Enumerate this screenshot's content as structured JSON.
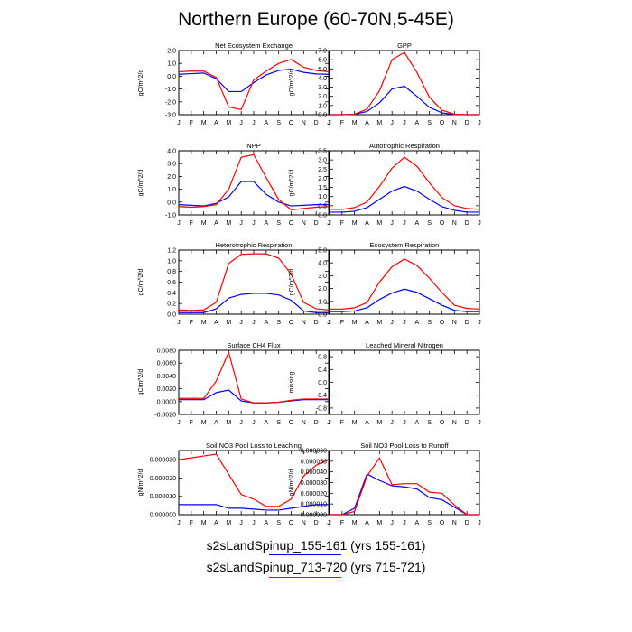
{
  "title": "Northern Europe (60-70N,5-45E)",
  "colors": {
    "run1": "#0000ff",
    "run2": "#ff0000"
  },
  "legend": [
    {
      "label": "s2sLandSpinup_155-161 (yrs 155-161)",
      "color": "#0000ff"
    },
    {
      "label": "s2sLandSpinup_713-720 (yrs 715-721)",
      "color": "#ff0000"
    }
  ],
  "months": [
    "J",
    "F",
    "M",
    "A",
    "M",
    "J",
    "J",
    "A",
    "S",
    "O",
    "N",
    "D",
    "J"
  ],
  "chart_data": [
    {
      "type": "line",
      "title": "Net Ecosystem Exchange",
      "ylabel": "gC/m^2/d",
      "ylim": [
        -3.0,
        2.0
      ],
      "yticks": [
        "-3.0",
        "-2.0",
        "-1.0",
        "0.0",
        "1.0",
        "2.0"
      ],
      "series": [
        {
          "color": "#0000ff",
          "values": [
            0.15,
            0.2,
            0.25,
            -0.2,
            -1.2,
            -1.2,
            -0.5,
            0.1,
            0.45,
            0.55,
            0.3,
            0.18,
            0.15
          ]
        },
        {
          "color": "#ff0000",
          "values": [
            0.35,
            0.4,
            0.4,
            -0.1,
            -2.4,
            -2.6,
            -0.3,
            0.4,
            1.0,
            1.3,
            0.7,
            0.45,
            0.35
          ]
        }
      ]
    },
    {
      "type": "line",
      "title": "GPP",
      "ylabel": "gC/m^2/d",
      "ylim": [
        0.0,
        7.0
      ],
      "yticks": [
        "0.0",
        "1.0",
        "2.0",
        "3.0",
        "4.0",
        "5.0",
        "6.0",
        "7.0"
      ],
      "series": [
        {
          "color": "#0000ff",
          "values": [
            0.0,
            0.0,
            0.05,
            0.35,
            1.3,
            2.8,
            3.1,
            2.0,
            0.8,
            0.2,
            0.02,
            0.0,
            0.0
          ]
        },
        {
          "color": "#ff0000",
          "values": [
            0.0,
            0.0,
            0.05,
            0.6,
            2.6,
            6.0,
            6.8,
            4.6,
            1.9,
            0.5,
            0.05,
            0.0,
            0.0
          ]
        }
      ]
    },
    {
      "type": "line",
      "title": "NPP",
      "ylabel": "gC/m^2/d",
      "ylim": [
        -1.0,
        4.0
      ],
      "yticks": [
        "-1.0",
        "0.0",
        "1.0",
        "2.0",
        "3.0",
        "4.0"
      ],
      "series": [
        {
          "color": "#0000ff",
          "values": [
            -0.2,
            -0.25,
            -0.3,
            -0.1,
            0.4,
            1.6,
            1.6,
            0.6,
            0.0,
            -0.3,
            -0.25,
            -0.2,
            -0.2
          ]
        },
        {
          "color": "#ff0000",
          "values": [
            -0.35,
            -0.4,
            -0.35,
            -0.2,
            1.0,
            3.5,
            3.7,
            1.9,
            0.2,
            -0.6,
            -0.5,
            -0.4,
            -0.35
          ]
        }
      ]
    },
    {
      "type": "line",
      "title": "Autotrophic Respiration",
      "ylabel": "gC/m^2/d",
      "ylim": [
        0.0,
        3.5
      ],
      "yticks": [
        "0.0",
        "0.5",
        "1.0",
        "1.5",
        "2.0",
        "2.5",
        "3.0",
        "3.5"
      ],
      "series": [
        {
          "color": "#0000ff",
          "values": [
            0.15,
            0.15,
            0.2,
            0.4,
            0.85,
            1.3,
            1.55,
            1.3,
            0.85,
            0.45,
            0.25,
            0.15,
            0.15
          ]
        },
        {
          "color": "#ff0000",
          "values": [
            0.3,
            0.3,
            0.4,
            0.7,
            1.55,
            2.55,
            3.15,
            2.65,
            1.75,
            0.95,
            0.5,
            0.35,
            0.3
          ]
        }
      ]
    },
    {
      "type": "line",
      "title": "Heterotrophic Respiration",
      "ylabel": "gC/m^2/d",
      "ylim": [
        0.0,
        1.2
      ],
      "yticks": [
        "0.0",
        "0.2",
        "0.4",
        "0.6",
        "0.8",
        "1.0",
        "1.2"
      ],
      "series": [
        {
          "color": "#0000ff",
          "values": [
            0.03,
            0.03,
            0.03,
            0.1,
            0.3,
            0.37,
            0.39,
            0.39,
            0.36,
            0.26,
            0.06,
            0.03,
            0.03
          ]
        },
        {
          "color": "#ff0000",
          "values": [
            0.08,
            0.07,
            0.08,
            0.22,
            0.95,
            1.12,
            1.13,
            1.13,
            1.05,
            0.75,
            0.22,
            0.1,
            0.08
          ]
        }
      ]
    },
    {
      "type": "line",
      "title": "Ecosystem Respiration",
      "ylabel": "gC/m^2/d",
      "ylim": [
        0.0,
        5.0
      ],
      "yticks": [
        "0.0",
        "1.0",
        "2.0",
        "3.0",
        "4.0",
        "5.0"
      ],
      "series": [
        {
          "color": "#0000ff",
          "values": [
            0.2,
            0.2,
            0.25,
            0.5,
            1.15,
            1.65,
            1.95,
            1.7,
            1.2,
            0.7,
            0.3,
            0.2,
            0.2
          ]
        },
        {
          "color": "#ff0000",
          "values": [
            0.4,
            0.4,
            0.5,
            0.9,
            2.5,
            3.7,
            4.3,
            3.8,
            2.8,
            1.7,
            0.7,
            0.45,
            0.4
          ]
        }
      ]
    },
    {
      "type": "line",
      "title": "Surface CH4 Flux",
      "ylabel": "gC/m^2/d",
      "ylim": [
        -0.002,
        0.008
      ],
      "yticks": [
        "-0.0020",
        "0.0000",
        "0.0020",
        "0.0040",
        "0.0060",
        "0.0080"
      ],
      "series": [
        {
          "color": "#0000ff",
          "values": [
            0.0003,
            0.0003,
            0.0003,
            0.0014,
            0.0018,
            0.0001,
            -0.0002,
            -0.0002,
            -0.0001,
            0.0001,
            0.0003,
            0.0003,
            0.0003
          ]
        },
        {
          "color": "#ff0000",
          "values": [
            0.0005,
            0.0005,
            0.0005,
            0.0032,
            0.0077,
            0.0004,
            -0.0002,
            -0.0002,
            -0.0001,
            0.0002,
            0.0004,
            0.0004,
            0.0004
          ]
        }
      ]
    },
    {
      "type": "line",
      "title": "Leached Mineral Nitrogen",
      "ylabel": "missing",
      "ylim": [
        -1.0,
        1.0
      ],
      "yticks": [
        "-0.8",
        "-0.4",
        "0.0",
        "0.4",
        "0.8"
      ],
      "ytick_values": [
        -0.8,
        -0.4,
        0.0,
        0.4,
        0.8
      ],
      "series": []
    },
    {
      "type": "line",
      "title": "Soil NO3 Pool Loss to Leaching",
      "ylabel": "gN/m^2/d",
      "ylim": [
        0.0,
        3.5e-05
      ],
      "yticks": [
        "0.000000",
        "0.000010",
        "0.000020",
        "0.000030"
      ],
      "series": [
        {
          "color": "#0000ff",
          "values": [
            5.5e-06,
            5.5e-06,
            5.5e-06,
            5.5e-06,
            3.5e-06,
            3.5e-06,
            3e-06,
            2.5e-06,
            2.5e-06,
            3.5e-06,
            4.5e-06,
            5.5e-06,
            5.5e-06
          ]
        },
        {
          "color": "#ff0000",
          "values": [
            3e-05,
            3.1e-05,
            3.2e-05,
            3.3e-05,
            2.2e-05,
            1.1e-05,
            8.5e-06,
            4.5e-06,
            4.5e-06,
            8.5e-06,
            2.1e-05,
            2.7e-05,
            3e-05
          ]
        }
      ]
    },
    {
      "type": "line",
      "title": "Soil NO3 Pool Loss to Runoff",
      "ylabel": "gN/m^2/d",
      "ylim": [
        0.0,
        6e-05
      ],
      "yticks": [
        "0.000000",
        "0.000010",
        "0.000020",
        "0.000030",
        "0.000040",
        "0.000050",
        "0.000060"
      ],
      "series": [
        {
          "color": "#0000ff",
          "values": [
            0.0,
            0.0,
            6e-06,
            3.8e-05,
            3.2e-05,
            2.7e-05,
            2.6e-05,
            2.4e-05,
            1.6e-05,
            1.4e-05,
            7e-06,
            0.0,
            0.0
          ]
        },
        {
          "color": "#ff0000",
          "values": [
            0.0,
            0.0,
            3e-06,
            3.6e-05,
            5.3e-05,
            2.8e-05,
            2.9e-05,
            2.9e-05,
            2.1e-05,
            2e-05,
            9e-06,
            0.0,
            0.0
          ]
        }
      ]
    }
  ]
}
